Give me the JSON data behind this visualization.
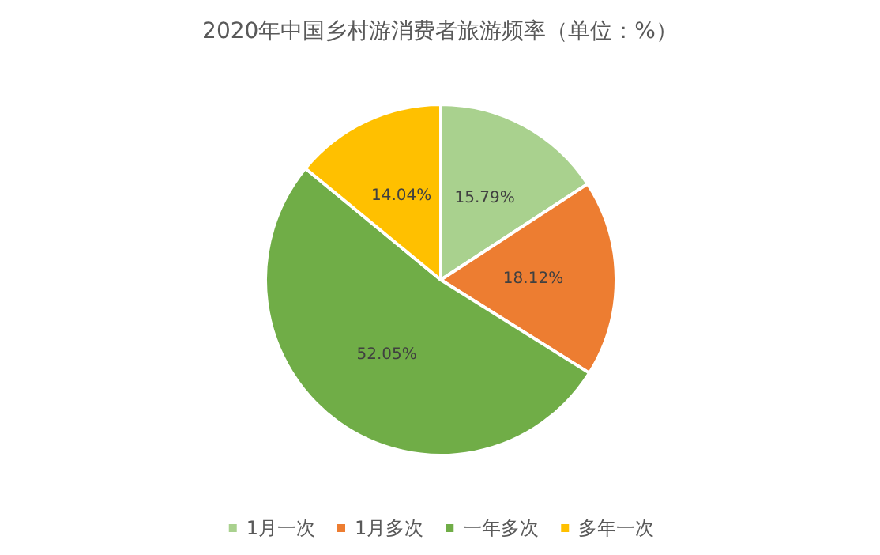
{
  "chart_data": {
    "type": "pie",
    "title": "2020年中国乡村游消费者旅游频率（单位：%）",
    "categories": [
      "1月一次",
      "1月多次",
      "一年多次",
      "多年一次"
    ],
    "values": [
      15.79,
      18.12,
      52.05,
      14.04
    ],
    "value_labels": [
      "15.79%",
      "18.12%",
      "52.05%",
      "14.04%"
    ],
    "colors": [
      "#a9d18e",
      "#ed7d31",
      "#70ad47",
      "#ffc000"
    ],
    "legend": "bottom"
  }
}
